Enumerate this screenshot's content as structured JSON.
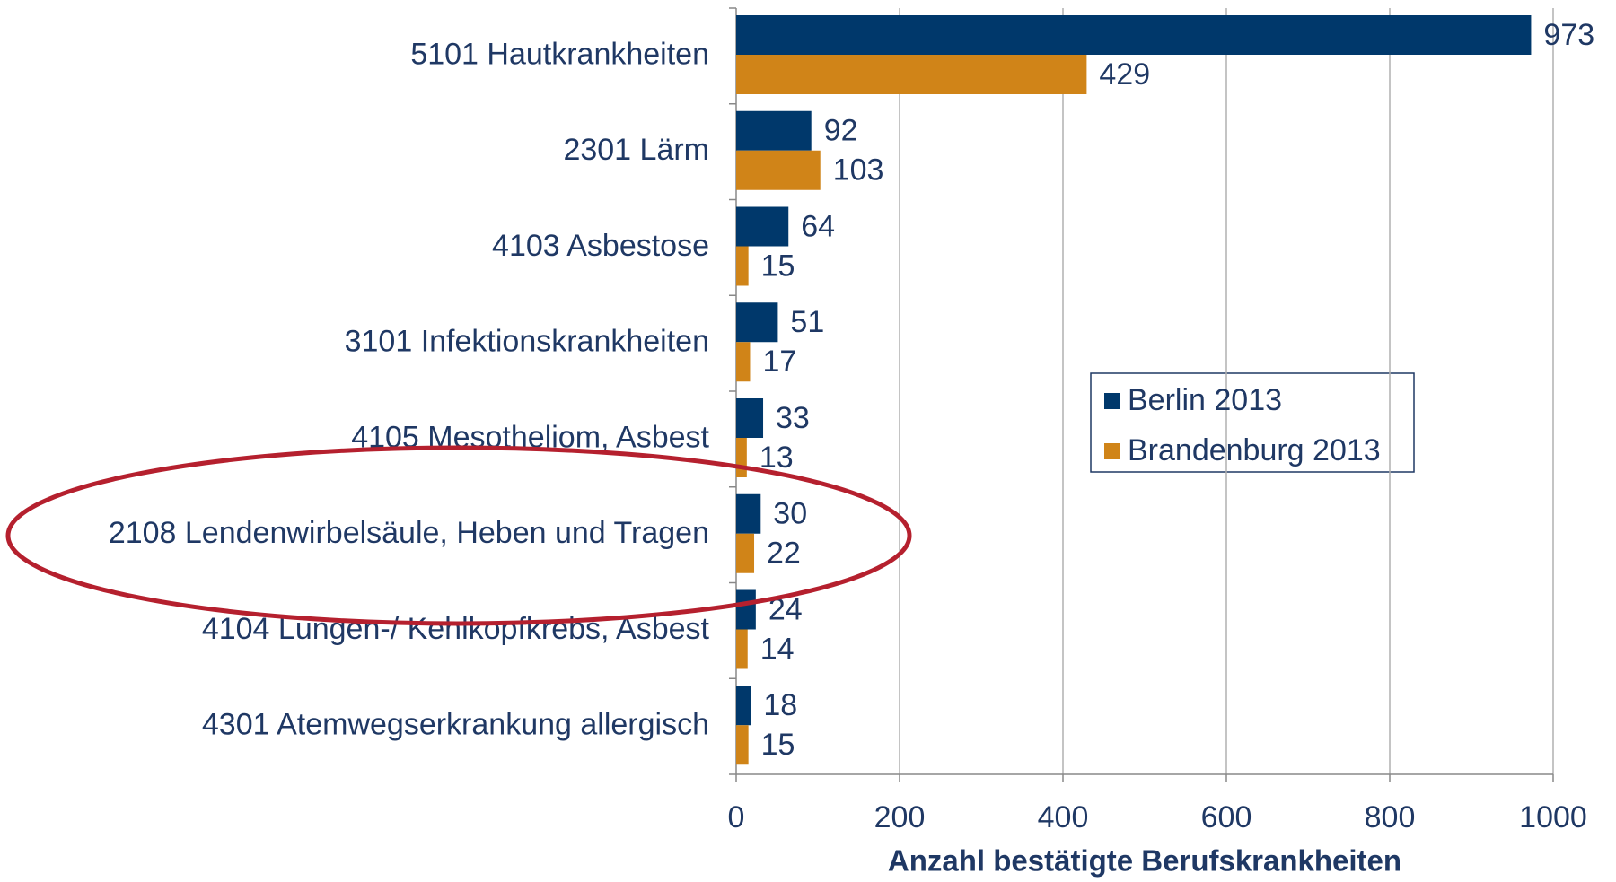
{
  "chart_data": {
    "type": "barh",
    "categories": [
      "5101 Hautkrankheiten",
      "2301 Lärm",
      "4103 Asbestose",
      "3101 Infektionskrankheiten",
      "4105 Mesotheliom, Asbest",
      "2108 Lendenwirbelsäule, Heben und Tragen",
      "4104 Lungen-/ Kehlkopfkrebs, Asbest",
      "4301 Atemwegserkrankung allergisch"
    ],
    "series": [
      {
        "name": "Berlin 2013",
        "color": "#00386b",
        "values": [
          973,
          92,
          64,
          51,
          33,
          30,
          24,
          18
        ]
      },
      {
        "name": "Brandenburg 2013",
        "color": "#d08418",
        "values": [
          429,
          103,
          15,
          17,
          13,
          22,
          14,
          15
        ]
      }
    ],
    "xlabel": "Anzahl bestätigte Berufskrankheiten",
    "xlim": [
      0,
      1000
    ],
    "xticks": [
      0,
      200,
      400,
      600,
      800,
      1000
    ],
    "grid": true
  }
}
